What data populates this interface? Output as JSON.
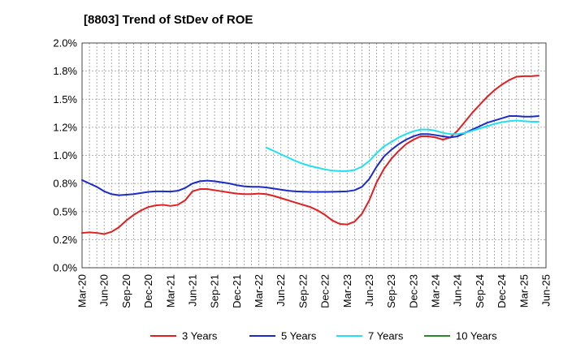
{
  "chart_data": {
    "type": "line",
    "title": "[8803]  Trend of StDev of ROE",
    "xlabel": "",
    "ylabel": "",
    "ylim": [
      0,
      2.0
    ],
    "y_ticks": [
      0,
      0.25,
      0.5,
      0.75,
      1.0,
      1.25,
      1.5,
      1.75,
      2.0
    ],
    "y_tick_labels": [
      "0.0%",
      "0.2%",
      "0.5%",
      "0.8%",
      "1.0%",
      "1.2%",
      "1.5%",
      "1.8%",
      "2.0%"
    ],
    "x_tick_labels": [
      "Mar-20",
      "Jun-20",
      "Sep-20",
      "Dec-20",
      "Mar-21",
      "Jun-21",
      "Sep-21",
      "Dec-21",
      "Mar-22",
      "Jun-22",
      "Sep-22",
      "Dec-22",
      "Mar-23",
      "Jun-23",
      "Sep-23",
      "Dec-23",
      "Mar-24",
      "Jun-24",
      "Sep-24",
      "Dec-24",
      "Mar-25",
      "Jun-25"
    ],
    "grid": true,
    "legend_position": "bottom",
    "series": [
      {
        "name": "3 Years",
        "color": "#e02020",
        "points": [
          [
            0,
            0.31
          ],
          [
            1,
            0.315
          ],
          [
            2,
            0.31
          ],
          [
            3,
            0.3
          ],
          [
            4,
            0.32
          ],
          [
            5,
            0.36
          ],
          [
            6,
            0.42
          ],
          [
            7,
            0.47
          ],
          [
            8,
            0.51
          ],
          [
            9,
            0.54
          ],
          [
            10,
            0.555
          ],
          [
            11,
            0.56
          ],
          [
            12,
            0.55
          ],
          [
            13,
            0.56
          ],
          [
            14,
            0.6
          ],
          [
            15,
            0.68
          ],
          [
            16,
            0.7
          ],
          [
            17,
            0.7
          ],
          [
            18,
            0.69
          ],
          [
            19,
            0.68
          ],
          [
            20,
            0.67
          ],
          [
            21,
            0.66
          ],
          [
            22,
            0.655
          ],
          [
            23,
            0.655
          ],
          [
            24,
            0.66
          ],
          [
            25,
            0.655
          ],
          [
            26,
            0.64
          ],
          [
            27,
            0.62
          ],
          [
            28,
            0.6
          ],
          [
            29,
            0.58
          ],
          [
            30,
            0.56
          ],
          [
            31,
            0.54
          ],
          [
            32,
            0.51
          ],
          [
            33,
            0.47
          ],
          [
            34,
            0.42
          ],
          [
            35,
            0.39
          ],
          [
            36,
            0.385
          ],
          [
            37,
            0.41
          ],
          [
            38,
            0.48
          ],
          [
            39,
            0.6
          ],
          [
            40,
            0.76
          ],
          [
            41,
            0.88
          ],
          [
            42,
            0.97
          ],
          [
            43,
            1.04
          ],
          [
            44,
            1.1
          ],
          [
            45,
            1.14
          ],
          [
            46,
            1.17
          ],
          [
            47,
            1.17
          ],
          [
            48,
            1.16
          ],
          [
            49,
            1.14
          ],
          [
            50,
            1.16
          ],
          [
            51,
            1.22
          ],
          [
            52,
            1.3
          ],
          [
            53,
            1.38
          ],
          [
            54,
            1.45
          ],
          [
            55,
            1.52
          ],
          [
            56,
            1.58
          ],
          [
            57,
            1.63
          ],
          [
            58,
            1.67
          ],
          [
            59,
            1.7
          ],
          [
            60,
            1.705
          ],
          [
            61,
            1.705
          ],
          [
            62,
            1.71
          ]
        ]
      },
      {
        "name": "5 Years",
        "color": "#1c2bc8",
        "points": [
          [
            0,
            0.78
          ],
          [
            1,
            0.75
          ],
          [
            2,
            0.72
          ],
          [
            3,
            0.68
          ],
          [
            4,
            0.655
          ],
          [
            5,
            0.645
          ],
          [
            6,
            0.65
          ],
          [
            7,
            0.655
          ],
          [
            8,
            0.665
          ],
          [
            9,
            0.675
          ],
          [
            10,
            0.68
          ],
          [
            11,
            0.68
          ],
          [
            12,
            0.678
          ],
          [
            13,
            0.685
          ],
          [
            14,
            0.71
          ],
          [
            15,
            0.75
          ],
          [
            16,
            0.77
          ],
          [
            17,
            0.775
          ],
          [
            18,
            0.77
          ],
          [
            19,
            0.76
          ],
          [
            20,
            0.75
          ],
          [
            21,
            0.735
          ],
          [
            22,
            0.725
          ],
          [
            23,
            0.72
          ],
          [
            24,
            0.72
          ],
          [
            25,
            0.715
          ],
          [
            26,
            0.705
          ],
          [
            27,
            0.695
          ],
          [
            28,
            0.685
          ],
          [
            29,
            0.68
          ],
          [
            30,
            0.677
          ],
          [
            31,
            0.675
          ],
          [
            32,
            0.675
          ],
          [
            33,
            0.675
          ],
          [
            34,
            0.676
          ],
          [
            35,
            0.678
          ],
          [
            36,
            0.68
          ],
          [
            37,
            0.69
          ],
          [
            38,
            0.72
          ],
          [
            39,
            0.79
          ],
          [
            40,
            0.9
          ],
          [
            41,
            0.99
          ],
          [
            42,
            1.05
          ],
          [
            43,
            1.1
          ],
          [
            44,
            1.14
          ],
          [
            45,
            1.17
          ],
          [
            46,
            1.19
          ],
          [
            47,
            1.19
          ],
          [
            48,
            1.18
          ],
          [
            49,
            1.17
          ],
          [
            50,
            1.16
          ],
          [
            51,
            1.17
          ],
          [
            52,
            1.2
          ],
          [
            53,
            1.23
          ],
          [
            54,
            1.26
          ],
          [
            55,
            1.29
          ],
          [
            56,
            1.31
          ],
          [
            57,
            1.33
          ],
          [
            58,
            1.35
          ],
          [
            59,
            1.35
          ],
          [
            60,
            1.345
          ],
          [
            61,
            1.345
          ],
          [
            62,
            1.35
          ]
        ]
      },
      {
        "name": "7 Years",
        "color": "#22e0f0",
        "points": [
          [
            25,
            1.07
          ],
          [
            26,
            1.04
          ],
          [
            27,
            1.01
          ],
          [
            28,
            0.98
          ],
          [
            29,
            0.95
          ],
          [
            30,
            0.925
          ],
          [
            31,
            0.905
          ],
          [
            32,
            0.89
          ],
          [
            33,
            0.875
          ],
          [
            34,
            0.865
          ],
          [
            35,
            0.86
          ],
          [
            36,
            0.86
          ],
          [
            37,
            0.87
          ],
          [
            38,
            0.9
          ],
          [
            39,
            0.95
          ],
          [
            40,
            1.02
          ],
          [
            41,
            1.08
          ],
          [
            42,
            1.12
          ],
          [
            43,
            1.16
          ],
          [
            44,
            1.19
          ],
          [
            45,
            1.215
          ],
          [
            46,
            1.23
          ],
          [
            47,
            1.23
          ],
          [
            48,
            1.22
          ],
          [
            49,
            1.2
          ],
          [
            50,
            1.19
          ],
          [
            51,
            1.19
          ],
          [
            52,
            1.2
          ],
          [
            53,
            1.22
          ],
          [
            54,
            1.24
          ],
          [
            55,
            1.26
          ],
          [
            56,
            1.28
          ],
          [
            57,
            1.295
          ],
          [
            58,
            1.305
          ],
          [
            59,
            1.31
          ],
          [
            60,
            1.305
          ],
          [
            61,
            1.3
          ],
          [
            62,
            1.3
          ]
        ]
      },
      {
        "name": "10 Years",
        "color": "#2a8a2a",
        "points": []
      }
    ]
  }
}
